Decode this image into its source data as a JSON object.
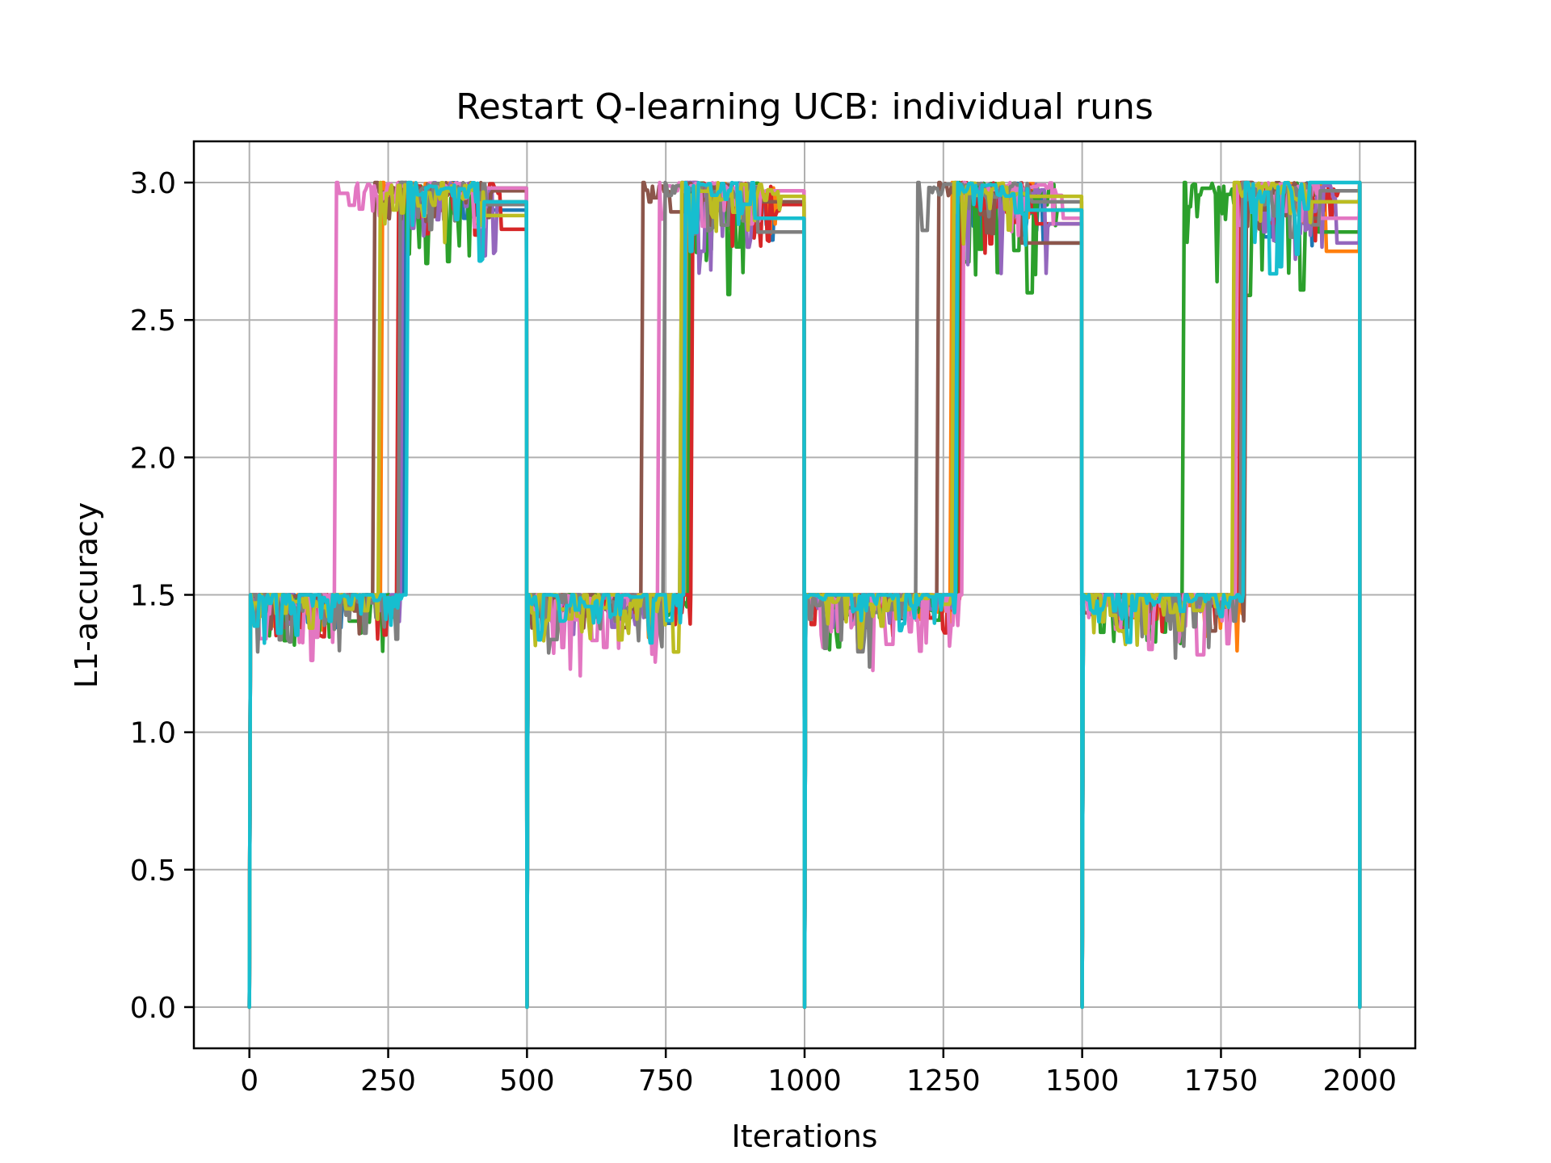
{
  "chart_data": {
    "type": "line",
    "title": "Restart Q-learning UCB: individual runs",
    "xlabel": "Iterations",
    "ylabel": "L1-accuracy",
    "xlim": [
      -100,
      2100
    ],
    "ylim": [
      -0.15,
      3.15
    ],
    "xticks": [
      0,
      250,
      500,
      750,
      1000,
      1250,
      1500,
      1750,
      2000
    ],
    "xtick_labels": [
      "0",
      "250",
      "500",
      "750",
      "1000",
      "1250",
      "1500",
      "1750",
      "2000"
    ],
    "yticks": [
      0.0,
      0.5,
      1.0,
      1.5,
      2.0,
      2.5,
      3.0
    ],
    "ytick_labels": [
      "0.0",
      "0.5",
      "1.0",
      "1.5",
      "2.0",
      "2.5",
      "3.0"
    ],
    "grid": true,
    "legend": "none",
    "restart_period": 500,
    "num_runs": 10,
    "colors": [
      "#1f77b4",
      "#ff7f0e",
      "#2ca02c",
      "#d62728",
      "#9467bd",
      "#8c564b",
      "#e377c2",
      "#7f7f7f",
      "#bcbd22",
      "#17becf"
    ],
    "low_plateau": 1.5,
    "high_plateau": 3.0,
    "series": [
      {
        "switch_points": [
          278,
          775,
          1268,
          1785
        ],
        "low_min": 1.37,
        "high_min": 2.72,
        "final_high": [
          2.9,
          2.93,
          2.78,
          2.93
        ]
      },
      {
        "switch_points": [
          236,
          785,
          1262,
          1790
        ],
        "low_min": 1.28,
        "high_min": 2.8,
        "final_high": [
          2.93,
          2.97,
          2.9,
          2.75
        ]
      },
      {
        "switch_points": [
          270,
          790,
          1275,
          1680
        ],
        "low_min": 1.28,
        "high_min": 2.5,
        "final_high": [
          2.98,
          2.87,
          2.9,
          2.82
        ]
      },
      {
        "switch_points": [
          265,
          795,
          1280,
          1782
        ],
        "low_min": 1.3,
        "high_min": 2.72,
        "final_high": [
          2.83,
          2.92,
          2.85,
          2.97
        ]
      },
      {
        "switch_points": [
          272,
          780,
          1270,
          1785
        ],
        "low_min": 1.34,
        "high_min": 2.62,
        "final_high": [
          2.92,
          2.87,
          2.85,
          2.78
        ]
      },
      {
        "switch_points": [
          222,
          705,
          1238,
          1792
        ],
        "low_min": 1.33,
        "high_min": 2.78,
        "final_high": [
          2.97,
          2.93,
          2.78,
          2.87
        ]
      },
      {
        "switch_points": [
          153,
          735,
          1283,
          1775
        ],
        "low_min": 1.16,
        "high_min": 2.78,
        "final_high": [
          2.98,
          2.97,
          2.87,
          2.87
        ]
      },
      {
        "switch_points": [
          268,
          745,
          1200,
          1785
        ],
        "low_min": 1.2,
        "high_min": 2.75,
        "final_high": [
          2.92,
          2.82,
          2.93,
          2.97
        ]
      },
      {
        "switch_points": [
          232,
          775,
          1265,
          1770
        ],
        "low_min": 1.26,
        "high_min": 2.75,
        "final_high": [
          2.88,
          2.95,
          2.95,
          2.93
        ]
      },
      {
        "switch_points": [
          282,
          782,
          1272,
          1790
        ],
        "low_min": 1.3,
        "high_min": 2.64,
        "final_high": [
          2.93,
          2.87,
          2.9,
          3.0
        ]
      }
    ]
  }
}
